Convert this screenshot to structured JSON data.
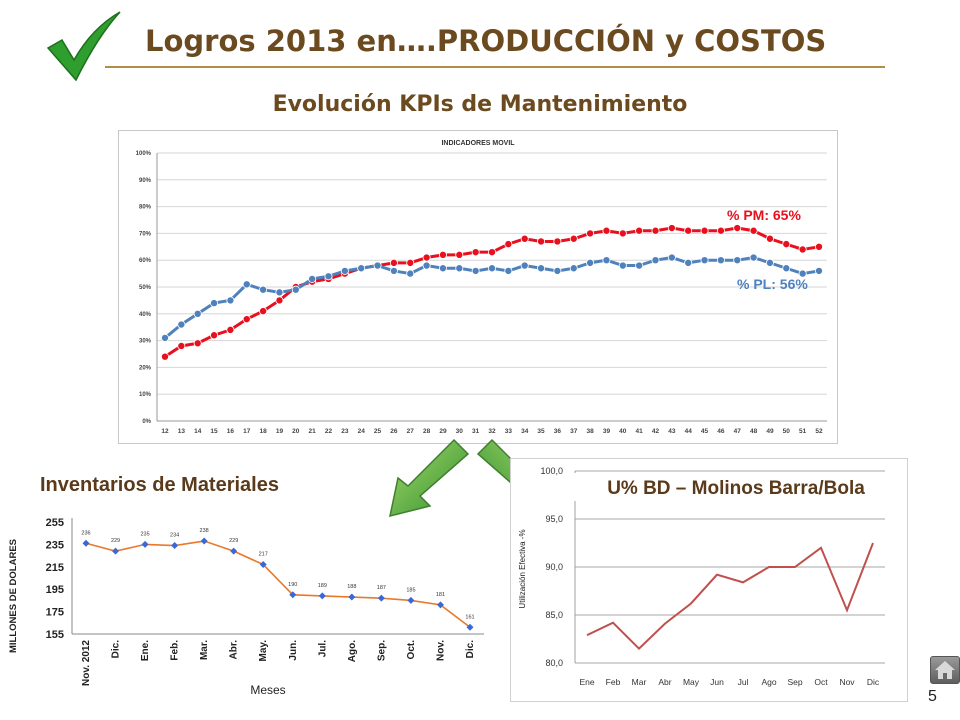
{
  "header": {
    "title": "Logros 2013 en….PRODUCCIÓN y COSTOS",
    "subtitle": "Evolución KPIs de Mantenimiento"
  },
  "page_number": "5",
  "colors": {
    "pm": "#e8101e",
    "pl": "#4f81bd",
    "inventory": "#e8792a",
    "inventory_marker": "#3a68d8",
    "u_line": "#c0504d",
    "title": "#6b4a1f"
  },
  "chart_data": [
    {
      "type": "line",
      "title": "INDICADORES MOVIL",
      "x": [
        12,
        13,
        14,
        15,
        16,
        17,
        18,
        19,
        20,
        21,
        22,
        23,
        24,
        25,
        26,
        27,
        28,
        29,
        30,
        31,
        32,
        33,
        34,
        35,
        36,
        37,
        38,
        39,
        40,
        41,
        42,
        43,
        44,
        45,
        46,
        47,
        48,
        49,
        50,
        51,
        52
      ],
      "x_labels": [
        "12",
        "13",
        "14",
        "15",
        "16",
        "17",
        "18",
        "19",
        "20",
        "21",
        "22",
        "23",
        "24",
        "25",
        "26",
        "27",
        "28",
        "29",
        "30",
        "31",
        "32",
        "33",
        "34",
        "35",
        "36",
        "37",
        "38",
        "39",
        "40",
        "41",
        "42",
        "43",
        "44",
        "45",
        "46",
        "47",
        "48",
        "49",
        "50",
        "51",
        "52"
      ],
      "ylim": [
        0,
        100
      ],
      "y_ticks": [
        "0%",
        "10%",
        "20%",
        "30%",
        "40%",
        "50%",
        "60%",
        "70%",
        "80%",
        "90%",
        "100%"
      ],
      "grid": true,
      "series": [
        {
          "name": "PM",
          "color": "#e8101e",
          "values": [
            24,
            28,
            29,
            32,
            34,
            38,
            41,
            45,
            50,
            52,
            53,
            55,
            57,
            58,
            59,
            59,
            61,
            62,
            62,
            63,
            63,
            66,
            68,
            67,
            67,
            68,
            70,
            71,
            70,
            71,
            71,
            72,
            71,
            71,
            71,
            72,
            71,
            68,
            66,
            64,
            65
          ]
        },
        {
          "name": "PL",
          "color": "#4f81bd",
          "values": [
            31,
            36,
            40,
            44,
            45,
            51,
            49,
            48,
            49,
            53,
            54,
            56,
            57,
            58,
            56,
            55,
            58,
            57,
            57,
            56,
            57,
            56,
            58,
            57,
            56,
            57,
            59,
            60,
            58,
            58,
            60,
            61,
            59,
            60,
            60,
            60,
            61,
            59,
            57,
            55,
            56
          ]
        }
      ],
      "annotations": [
        "% PM: 65%",
        "% PL: 56%"
      ]
    },
    {
      "type": "line",
      "title": "Inventarios de Materiales",
      "categories": [
        "Nov. 2012",
        "Dic.",
        "Ene.",
        "Feb.",
        "Mar.",
        "Abr.",
        "May.",
        "Jun.",
        "Jul.",
        "Ago.",
        "Sep.",
        "Oct.",
        "Nov.",
        "Dic."
      ],
      "values": [
        236,
        229,
        235,
        234,
        238,
        229,
        217,
        190,
        189,
        188,
        187,
        185,
        181,
        161
      ],
      "data_labels": [
        "236",
        "229",
        "235",
        "234",
        "238",
        "229",
        "217",
        "190",
        "189",
        "188",
        "187",
        "185",
        "181",
        "161"
      ],
      "ylabel": "MILLONES DE DOLARES",
      "xlabel": "Meses",
      "ylim": [
        155,
        255
      ],
      "y_ticks": [
        "155",
        "175",
        "195",
        "215",
        "235",
        "255"
      ],
      "grid": false
    },
    {
      "type": "line",
      "title": "U% BD – Molinos Barra/Bola",
      "categories": [
        "Ene",
        "Feb",
        "Mar",
        "Abr",
        "May",
        "Jun",
        "Jul",
        "Ago",
        "Sep",
        "Oct",
        "Nov",
        "Dic"
      ],
      "values": [
        82.9,
        84.2,
        81.5,
        84.1,
        86.2,
        89.2,
        88.4,
        90.0,
        90.0,
        92.0,
        85.5,
        92.5
      ],
      "ylabel": "Utilización Efectiva -%",
      "ylim": [
        80,
        100
      ],
      "y_ticks": [
        "80,0",
        "85,0",
        "90,0",
        "95,0",
        "100,0"
      ],
      "grid": true
    }
  ]
}
